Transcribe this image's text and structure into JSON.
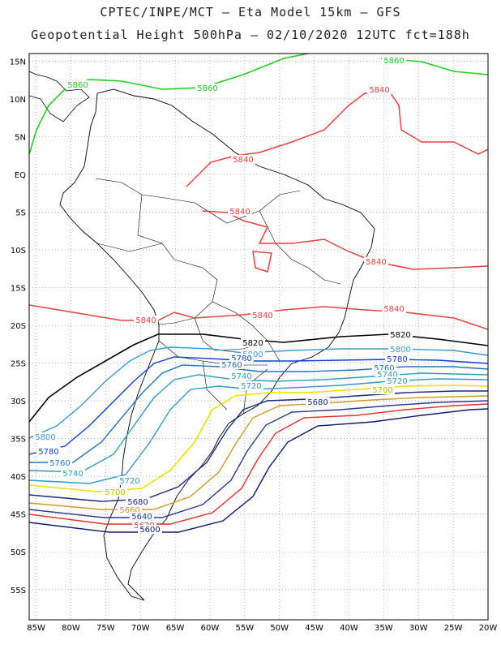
{
  "title_line1": "CPTEC/INPE/MCT –  Eta Model 15km – GFS",
  "title_line2": "Geopotential Height 500hPa – 02/10/2020 12UTC fct=188h",
  "map": {
    "lon_range": [
      -86,
      -20
    ],
    "lat_range": [
      -59,
      16
    ],
    "lat_ticks": [
      "15N",
      "10N",
      "5N",
      "EQ",
      "5S",
      "10S",
      "15S",
      "20S",
      "25S",
      "30S",
      "35S",
      "40S",
      "45S",
      "50S",
      "55S"
    ],
    "lon_ticks": [
      "85W",
      "80W",
      "75W",
      "70W",
      "65W",
      "60W",
      "55W",
      "50W",
      "45W",
      "40W",
      "35W",
      "30W",
      "25W",
      "20W"
    ],
    "grid": true
  },
  "contours": [
    {
      "level": "5860",
      "color": "#22cc22"
    },
    {
      "level": "5840",
      "color": "#e84040"
    },
    {
      "level": "5820",
      "color": "#000000"
    },
    {
      "level": "5800",
      "color": "#3a9ad0"
    },
    {
      "level": "5780",
      "color": "#1040e0"
    },
    {
      "level": "5760",
      "color": "#2277bb"
    },
    {
      "level": "5740",
      "color": "#2aa0b8"
    },
    {
      "level": "5720",
      "color": "#3399cc"
    },
    {
      "level": "5700",
      "color": "#f0e000"
    },
    {
      "level": "5680",
      "color": "#1a2a80"
    },
    {
      "level": "5660",
      "color": "#d09a30"
    },
    {
      "level": "5640",
      "color": "#2a3a90"
    },
    {
      "level": "5620",
      "color": "#e03030"
    },
    {
      "level": "5600",
      "color": "#0a1a70"
    }
  ]
}
